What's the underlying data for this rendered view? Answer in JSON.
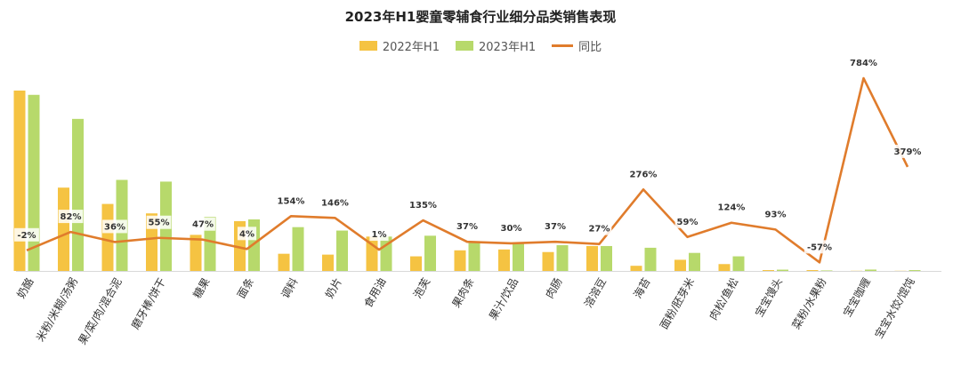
{
  "chart_data": {
    "type": "bar",
    "title": "2023年H1婴童零辅食行业细分品类销售表现",
    "legend": [
      "2022年H1",
      "2023年H1",
      "同比"
    ],
    "legend_position": "top",
    "grid": false,
    "categories": [
      "奶酪",
      "米粉/米糊/汤粥",
      "果/菜/肉/混合泥",
      "磨牙棒/饼干",
      "糖果",
      "面条",
      "调料",
      "奶片",
      "食用油",
      "泡芙",
      "果肉条",
      "果汁/饮品",
      "肉肠",
      "溶溶豆",
      "海苔",
      "面粉/胚芽米",
      "肉松/鱼松",
      "宝宝馒头",
      "菜粉/水果粉",
      "宝宝咖喱",
      "宝宝水饺/馄饨"
    ],
    "series": [
      {
        "name": "2022年H1",
        "type": "bar",
        "color": "#F5C342",
        "values": [
          210,
          97,
          78,
          67,
          42,
          58,
          20,
          19,
          40,
          17,
          24,
          25,
          22,
          29,
          6,
          13,
          8,
          1,
          1,
          0.2,
          0.2
        ]
      },
      {
        "name": "2023年H1",
        "type": "bar",
        "color": "#B7D96B",
        "values": [
          205,
          177,
          106,
          104,
          63,
          60,
          51,
          47,
          40,
          41,
          33,
          32,
          30,
          29,
          27,
          21,
          17,
          1.5,
          0.6,
          1.6,
          1
        ]
      },
      {
        "name": "同比",
        "type": "line",
        "color": "#E07C2C",
        "unit": "%",
        "values": [
          -2,
          82,
          36,
          55,
          47,
          4,
          154,
          146,
          1,
          135,
          37,
          30,
          37,
          27,
          276,
          59,
          124,
          93,
          -57,
          784,
          379
        ],
        "labels": [
          "-2%",
          "82%",
          "36%",
          "55%",
          "47%",
          "4%",
          "154%",
          "146%",
          "1%",
          "135%",
          "37%",
          "30%",
          "37%",
          "27%",
          "276%",
          "59%",
          "124%",
          "93%",
          "-57%",
          "784%",
          "379%"
        ]
      }
    ]
  }
}
